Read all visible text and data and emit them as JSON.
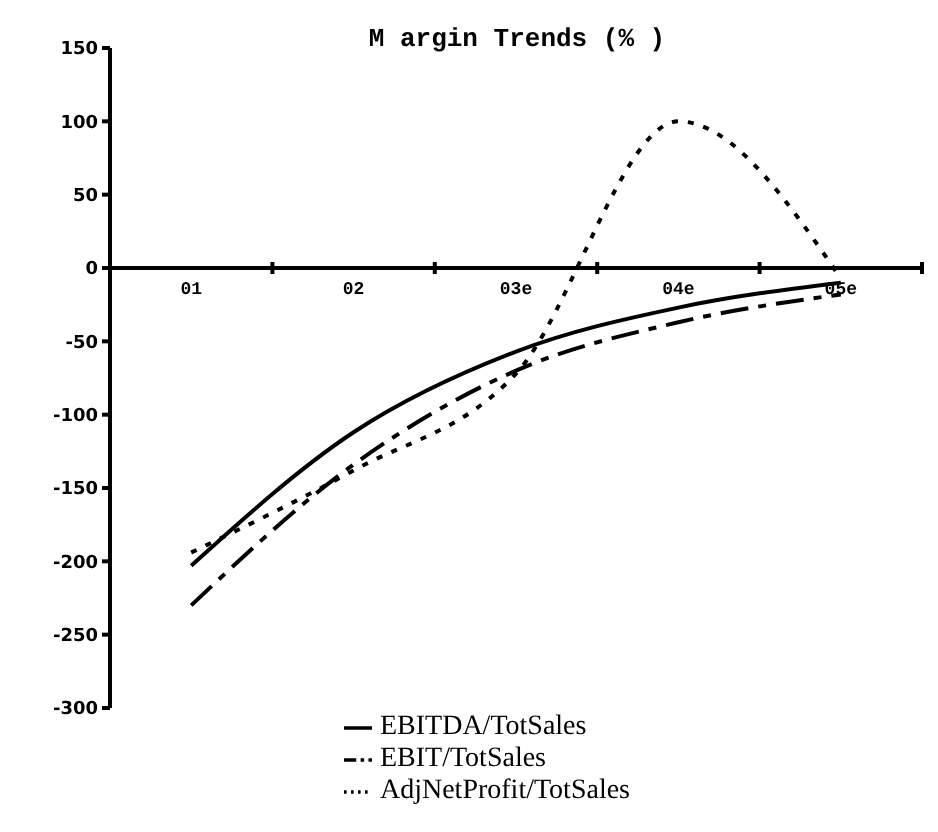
{
  "chart_data": {
    "type": "line",
    "title": "M argin Trends (% )",
    "categories": [
      "01",
      "02",
      "03e",
      "04e",
      "05e"
    ],
    "series": [
      {
        "name": "EBITDA/TotSales",
        "color": "#000000",
        "line_style": "solid",
        "values": [
          -203,
          -112,
          -57,
          -27,
          -10
        ]
      },
      {
        "name": "EBIT/TotSales",
        "color": "#000000",
        "line_style": "dashed",
        "values": [
          -230,
          -134,
          -70,
          -37,
          -18
        ]
      },
      {
        "name": "AdjNetProfit/TotSales",
        "color": "#000000",
        "line_style": "dotted",
        "values": [
          -194,
          -138,
          -72,
          100,
          -7
        ]
      }
    ],
    "ylim": [
      -300,
      150
    ],
    "yticks": [
      -300,
      -250,
      -200,
      -150,
      -100,
      -50,
      0,
      50,
      100,
      150
    ],
    "grid": false,
    "legend": "bottom",
    "marker": "none"
  }
}
